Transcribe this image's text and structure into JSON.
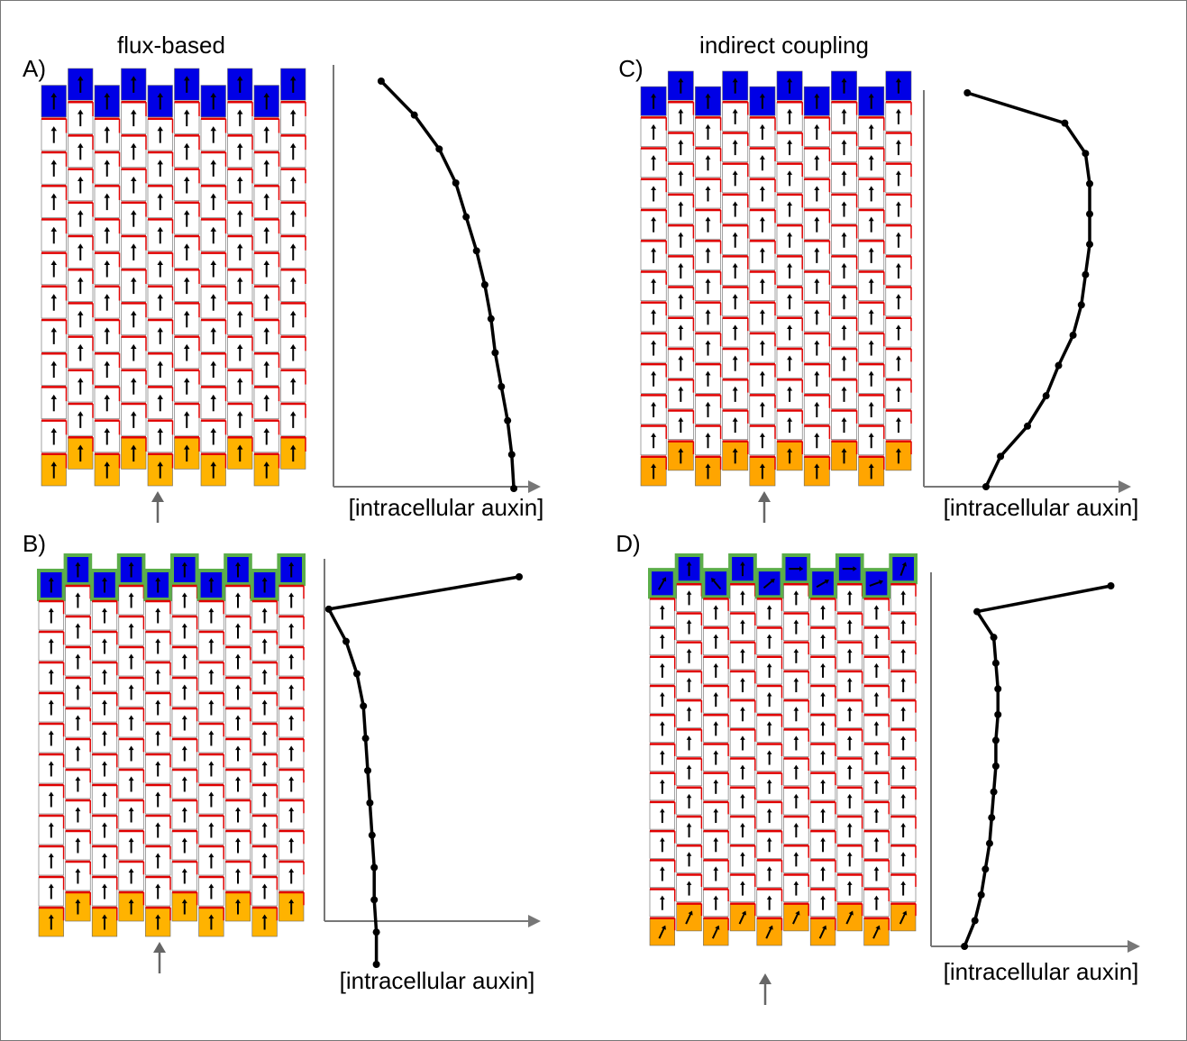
{
  "panels": [
    {
      "label": "A)",
      "title": "flux-based",
      "axis_label": "[intracellular auxin]",
      "profile": [
        0.23,
        0.39,
        0.51,
        0.59,
        0.64,
        0.69,
        0.73,
        0.76,
        0.78,
        0.81,
        0.84,
        0.86,
        0.87
      ]
    },
    {
      "label": "B)",
      "axis_label": "[intracellular auxin]",
      "profile": [
        0.9,
        0.02,
        0.1,
        0.15,
        0.18,
        0.19,
        0.2,
        0.21,
        0.22,
        0.23,
        0.23,
        0.24,
        0.24
      ]
    },
    {
      "label": "C)",
      "title": "indirect coupling",
      "axis_label": "[intracellular auxin]",
      "profile": [
        0.21,
        0.68,
        0.78,
        0.8,
        0.8,
        0.8,
        0.78,
        0.76,
        0.72,
        0.65,
        0.59,
        0.5,
        0.37,
        0.3
      ]
    },
    {
      "label": "D)",
      "axis_label": "[intracellular auxin]",
      "profile": [
        0.86,
        0.22,
        0.3,
        0.31,
        0.32,
        0.32,
        0.31,
        0.31,
        0.3,
        0.29,
        0.28,
        0.26,
        0.24,
        0.21,
        0.16
      ]
    }
  ]
}
